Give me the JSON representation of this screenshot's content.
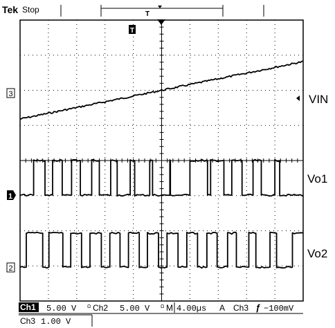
{
  "header": {
    "brand": "Tek",
    "run_state": "Stop",
    "trigger_marker": "T",
    "trigger_icon": "trigger-position-icon"
  },
  "channel_markers": {
    "ch3": "3",
    "ch1": "1",
    "ch2": "2"
  },
  "annotations": {
    "vin": "VIN",
    "vo1": "Vo1",
    "vo2": "Vo2"
  },
  "status_bar": {
    "ch1_name": "Ch1",
    "ch1_scale": "5.00 V",
    "ch1_coupling": "Ω",
    "ch2_name": "Ch2",
    "ch2_scale": "5.00 V",
    "ch2_coupling": "Ω",
    "timebase_prefix": "M",
    "timebase": "4.00µs",
    "trigger_mode": "A",
    "trigger_source": "Ch3",
    "trigger_slope": "ƒ",
    "trigger_level": "−100mV",
    "ch3_name": "Ch3",
    "ch3_scale": "1.00 V"
  },
  "colors": {
    "background": "#ffffff",
    "trace": "#000000",
    "graticule": "#000000"
  },
  "chart_data": {
    "type": "line",
    "title": "",
    "grid": true,
    "x_divisions": 10,
    "y_divisions": 8,
    "x_unit": "µs",
    "time_per_div": 4,
    "series": [
      {
        "name": "VIN",
        "channel": "Ch3",
        "kind": "ramp",
        "level_start_div": 0.0,
        "level_end_div": 2.05
      },
      {
        "name": "Vo1",
        "channel": "Ch1",
        "kind": "pulse",
        "low_div": 0.0,
        "high_div": 1.2,
        "rising_edges_div": [
          0.48,
          1.15,
          1.82,
          2.53,
          3.2,
          3.89,
          4.58,
          5.29,
          6.0,
          6.73,
          7.48,
          8.23,
          9.0
        ],
        "falling_edges_div": [
          0.88,
          1.49,
          2.13,
          2.8,
          3.43,
          4.05,
          4.68,
          5.31,
          5.97,
          6.62,
          7.2,
          7.84,
          8.52,
          9.17
        ]
      },
      {
        "name": "Vo2",
        "channel": "Ch2",
        "kind": "pulse",
        "low_div": 0.0,
        "high_div": 1.2,
        "rising_edges_div": [
          0.22,
          1.02,
          1.79,
          2.47,
          3.17,
          3.83,
          4.5,
          5.19,
          5.89,
          6.6,
          7.33,
          8.08,
          8.83,
          9.62
        ],
        "falling_edges_div": [
          0.8,
          1.51,
          2.17,
          2.87,
          3.53,
          4.21,
          4.89,
          5.58,
          6.27,
          6.96,
          7.64,
          8.33,
          9.06
        ]
      }
    ]
  }
}
